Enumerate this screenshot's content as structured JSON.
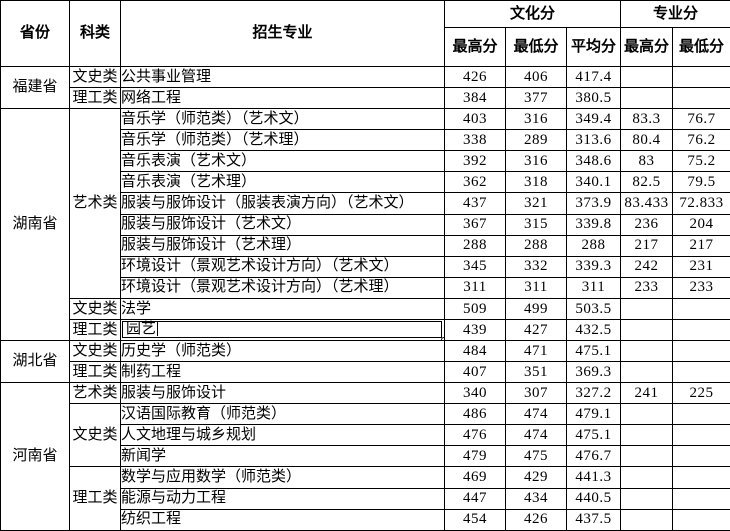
{
  "colors": {
    "border": "#000000",
    "background": "#ffffff",
    "text": "#000000"
  },
  "table": {
    "header": {
      "province": "省份",
      "category": "科类",
      "major": "招生专业",
      "culture_group": "文化分",
      "major_score_group": "专业分",
      "culture_max": "最高分",
      "culture_min": "最低分",
      "culture_avg": "平均分",
      "major_max": "最高分",
      "major_min": "最低分"
    },
    "rows": [
      {
        "province": {
          "label": "福建省",
          "rowspan": 2
        },
        "category": {
          "label": "文史类",
          "rowspan": 1
        },
        "major": "公共事业管理",
        "scores": [
          "426",
          "406",
          "417.4",
          "",
          ""
        ]
      },
      {
        "category": {
          "label": "理工类",
          "rowspan": 1
        },
        "major": "网络工程",
        "scores": [
          "384",
          "377",
          "380.5",
          "",
          ""
        ]
      },
      {
        "province": {
          "label": "湖南省",
          "rowspan": 11
        },
        "category": {
          "label": "艺术类",
          "rowspan": 9
        },
        "major": "音乐学（师范类）（艺术文）",
        "scores": [
          "403",
          "316",
          "349.4",
          "83.3",
          "76.7"
        ]
      },
      {
        "major": "音乐学（师范类）（艺术理）",
        "scores": [
          "338",
          "289",
          "313.6",
          "80.4",
          "76.2"
        ]
      },
      {
        "major": "音乐表演（艺术文）",
        "scores": [
          "392",
          "316",
          "348.6",
          "83",
          "75.2"
        ]
      },
      {
        "major": "音乐表演（艺术理）",
        "scores": [
          "362",
          "318",
          "340.1",
          "82.5",
          "79.5"
        ]
      },
      {
        "major": "服装与服饰设计（服装表演方向）（艺术文）",
        "scores": [
          "437",
          "321",
          "373.9",
          "83.433",
          "72.833"
        ]
      },
      {
        "major": "服装与服饰设计（艺术文）",
        "scores": [
          "367",
          "315",
          "339.8",
          "236",
          "204"
        ]
      },
      {
        "major": "服装与服饰设计（艺术理）",
        "scores": [
          "288",
          "288",
          "288",
          "217",
          "217"
        ]
      },
      {
        "major": "环境设计（景观艺术设计方向）（艺术文）",
        "scores": [
          "345",
          "332",
          "339.3",
          "242",
          "231"
        ]
      },
      {
        "major": "环境设计（景观艺术设计方向）（艺术理）",
        "scores": [
          "311",
          "311",
          "311",
          "233",
          "233"
        ]
      },
      {
        "category": {
          "label": "文史类",
          "rowspan": 1
        },
        "major": "法学",
        "scores": [
          "509",
          "499",
          "503.5",
          "",
          ""
        ]
      },
      {
        "category": {
          "label": "理工类",
          "rowspan": 1
        },
        "major": "园艺",
        "editing": true,
        "scores": [
          "439",
          "427",
          "432.5",
          "",
          ""
        ]
      },
      {
        "province": {
          "label": "湖北省",
          "rowspan": 2
        },
        "category": {
          "label": "文史类",
          "rowspan": 1
        },
        "major": "历史学（师范类）",
        "scores": [
          "484",
          "471",
          "475.1",
          "",
          ""
        ]
      },
      {
        "category": {
          "label": "理工类",
          "rowspan": 1
        },
        "major": "制药工程",
        "scores": [
          "407",
          "351",
          "369.3",
          "",
          ""
        ]
      },
      {
        "province": {
          "label": "河南省",
          "rowspan": 7
        },
        "category": {
          "label": "艺术类",
          "rowspan": 1
        },
        "major": "服装与服饰设计",
        "scores": [
          "340",
          "307",
          "327.2",
          "241",
          "225"
        ]
      },
      {
        "category": {
          "label": "文史类",
          "rowspan": 3
        },
        "major": "汉语国际教育（师范类）",
        "scores": [
          "486",
          "474",
          "479.1",
          "",
          ""
        ]
      },
      {
        "major": "人文地理与城乡规划",
        "scores": [
          "476",
          "474",
          "475.1",
          "",
          ""
        ]
      },
      {
        "major": "新闻学",
        "scores": [
          "479",
          "475",
          "476.7",
          "",
          ""
        ]
      },
      {
        "category": {
          "label": "理工类",
          "rowspan": 3
        },
        "major": "数学与应用数学（师范类）",
        "scores": [
          "469",
          "429",
          "441.3",
          "",
          ""
        ]
      },
      {
        "major": "能源与动力工程",
        "scores": [
          "447",
          "434",
          "440.5",
          "",
          ""
        ]
      },
      {
        "major": "纺织工程",
        "scores": [
          "454",
          "426",
          "437.5",
          "",
          ""
        ]
      }
    ]
  }
}
